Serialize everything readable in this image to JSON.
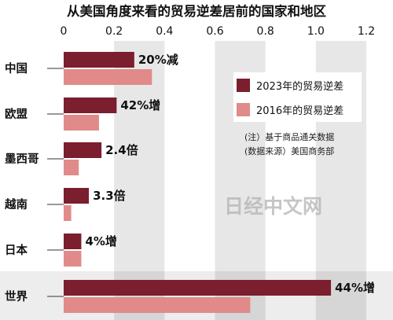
{
  "chart_data": {
    "type": "bar",
    "title": "从美国角度来看的贸易逆差居前的国家和地区",
    "categories": [
      "中国",
      "欧盟",
      "墨西哥",
      "越南",
      "日本",
      "世界"
    ],
    "series": [
      {
        "name": "2023年的贸易逆差",
        "color": "#7b1e2e",
        "values": [
          0.28,
          0.21,
          0.15,
          0.1,
          0.07,
          1.06
        ]
      },
      {
        "name": "2016年的贸易逆差",
        "color": "#e08a8a",
        "values": [
          0.35,
          0.14,
          0.06,
          0.03,
          0.07,
          0.74
        ]
      }
    ],
    "change_labels": [
      "20%减",
      "42%增",
      "2.4倍",
      "3.3倍",
      "4%增",
      "44%增"
    ],
    "xlim": [
      0,
      1.2
    ],
    "xticks": [
      0,
      0.2,
      0.4,
      0.6,
      0.8,
      1.0,
      1.2
    ],
    "xtick_labels": [
      "0",
      "0.2",
      "0.4",
      "0.6",
      "0.8",
      "1.0",
      "1.2"
    ],
    "legend_position": "right",
    "notes": [
      "(注）基于商品通关数据",
      "(数据来源）美国商务部"
    ],
    "watermark": "日经中文网"
  }
}
